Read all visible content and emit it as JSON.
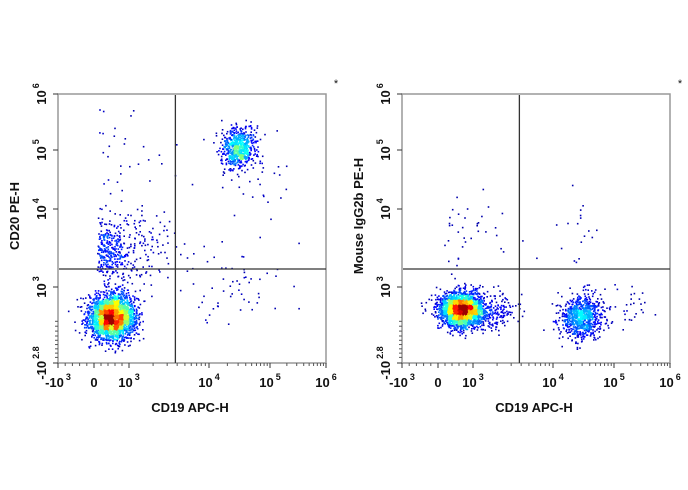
{
  "chart_data": [
    {
      "type": "scatter",
      "subtype": "flow-cytometry-density-dot-plot",
      "xlabel": "CD19 APC-H",
      "ylabel": "CD20 PE-H",
      "marker": "*",
      "x_scale": "biexponential",
      "y_scale": "biexponential",
      "xlim": [
        -1000,
        1000000
      ],
      "ylim": [
        -631,
        1000000
      ],
      "x_ticks": [
        {
          "value": -1000,
          "base": "-10",
          "exp": "3"
        },
        {
          "value": 0,
          "base": "0",
          "exp": ""
        },
        {
          "value": 1000,
          "base": "10",
          "exp": "3"
        },
        {
          "value": 10000,
          "base": "10",
          "exp": "4"
        },
        {
          "value": 100000,
          "base": "10",
          "exp": "5"
        },
        {
          "value": 1000000,
          "base": "10",
          "exp": "6"
        }
      ],
      "y_ticks": [
        {
          "value": -631,
          "base": "-10",
          "exp": "2.8"
        },
        {
          "value": 1000,
          "base": "10",
          "exp": "3"
        },
        {
          "value": 10000,
          "base": "10",
          "exp": "4"
        },
        {
          "value": 100000,
          "base": "10",
          "exp": "5"
        },
        {
          "value": 1000000,
          "base": "10",
          "exp": "6"
        }
      ],
      "quadrant_gate": {
        "x": 3800,
        "y": 1700
      },
      "populations": [
        {
          "x": 500,
          "y": 400,
          "sx": 330,
          "sy": 230,
          "n": 2600,
          "scale": "linear"
        },
        {
          "x": 600,
          "y": 3000,
          "sx_log": 0.35,
          "sy_log": 0.22,
          "n": 420,
          "scale": "log"
        },
        {
          "x": 30000,
          "y": 110000,
          "sx_log": 0.14,
          "sy_log": 0.17,
          "n": 650,
          "scale": "log"
        },
        {
          "x": 600,
          "y": 100000,
          "sx_log": 0.4,
          "sy_log": 0.5,
          "n": 30,
          "scale": "log"
        },
        {
          "x": 30000,
          "y": 1000,
          "sx_log": 0.6,
          "sy_log": 0.25,
          "n": 60,
          "scale": "log"
        },
        {
          "x": 60000,
          "y": 50000,
          "sx_log": 0.5,
          "sy_log": 0.4,
          "n": 35,
          "scale": "log"
        }
      ],
      "colormap": "jet-density"
    },
    {
      "type": "scatter",
      "subtype": "flow-cytometry-density-dot-plot",
      "xlabel": "CD19 APC-H",
      "ylabel": "Mouse IgG2b PE-H",
      "marker": "*",
      "x_scale": "biexponential",
      "y_scale": "biexponential",
      "xlim": [
        -1000,
        1000000
      ],
      "ylim": [
        -631,
        1000000
      ],
      "x_ticks": [
        {
          "value": -1000,
          "base": "-10",
          "exp": "3"
        },
        {
          "value": 0,
          "base": "0",
          "exp": ""
        },
        {
          "value": 1000,
          "base": "10",
          "exp": "3"
        },
        {
          "value": 10000,
          "base": "10",
          "exp": "4"
        },
        {
          "value": 100000,
          "base": "10",
          "exp": "5"
        },
        {
          "value": 1000000,
          "base": "10",
          "exp": "6"
        }
      ],
      "y_ticks": [
        {
          "value": -631,
          "base": "-10",
          "exp": "2.8"
        },
        {
          "value": 1000,
          "base": "10",
          "exp": "3"
        },
        {
          "value": 10000,
          "base": "10",
          "exp": "4"
        },
        {
          "value": 100000,
          "base": "10",
          "exp": "5"
        },
        {
          "value": 1000000,
          "base": "10",
          "exp": "6"
        }
      ],
      "quadrant_gate": {
        "x": 3800,
        "y": 1700
      },
      "populations": [
        {
          "x": 650,
          "y": 550,
          "sx": 300,
          "sy": 170,
          "n": 2600,
          "scale": "linear"
        },
        {
          "x": 1800,
          "y": 500,
          "sx_log": 0.15,
          "sy_log": 0.0,
          "sy": 170,
          "n": 200,
          "scale": "mixed"
        },
        {
          "x": 28000,
          "y": 400,
          "sx_log": 0.17,
          "sy": 220,
          "n": 800,
          "scale": "mixed"
        },
        {
          "x": 800,
          "y": 5000,
          "sx_log": 0.3,
          "sy_log": 0.3,
          "n": 40,
          "scale": "log"
        },
        {
          "x": 25000,
          "y": 6000,
          "sx_log": 0.2,
          "sy_log": 0.4,
          "n": 18,
          "scale": "log"
        },
        {
          "x": 150000,
          "y": 600,
          "sx_log": 0.3,
          "sy": 250,
          "n": 40,
          "scale": "mixed"
        }
      ],
      "colormap": "jet-density"
    }
  ]
}
